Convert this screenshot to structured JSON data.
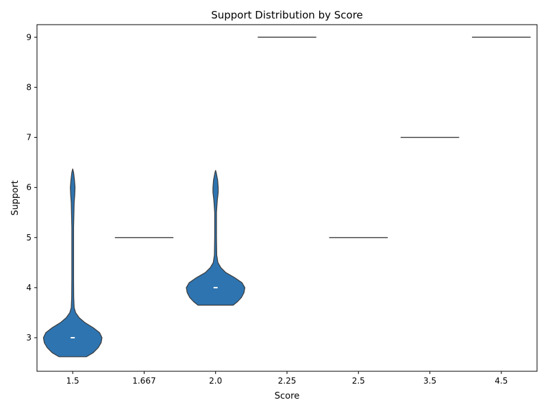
{
  "chart_data": {
    "type": "violin",
    "title": "Support Distribution by Score",
    "xlabel": "Score",
    "ylabel": "Support",
    "categories": [
      "1.5",
      "1.667",
      "2.0",
      "2.25",
      "2.5",
      "3.5",
      "4.5"
    ],
    "ylim": [
      2.33,
      9.25
    ],
    "yticks": [
      3,
      4,
      5,
      6,
      7,
      8,
      9
    ],
    "grid": false,
    "violins": [
      {
        "category": "1.5",
        "median": 3,
        "min": 2.62,
        "max": 6.37,
        "profile": [
          [
            2.62,
            0.47
          ],
          [
            2.7,
            0.7
          ],
          [
            2.8,
            0.87
          ],
          [
            2.9,
            0.97
          ],
          [
            3.0,
            1.0
          ],
          [
            3.1,
            0.92
          ],
          [
            3.2,
            0.7
          ],
          [
            3.3,
            0.42
          ],
          [
            3.4,
            0.22
          ],
          [
            3.5,
            0.1
          ],
          [
            3.6,
            0.05
          ],
          [
            3.8,
            0.035
          ],
          [
            4.2,
            0.03
          ],
          [
            5.2,
            0.03
          ],
          [
            5.7,
            0.05
          ],
          [
            5.85,
            0.07
          ],
          [
            6.0,
            0.08
          ],
          [
            6.15,
            0.06
          ],
          [
            6.3,
            0.03
          ],
          [
            6.37,
            0.0
          ]
        ]
      },
      {
        "category": "1.667",
        "value": 5
      },
      {
        "category": "2.0",
        "median": 4,
        "min": 3.65,
        "max": 6.34,
        "profile": [
          [
            3.65,
            0.6
          ],
          [
            3.72,
            0.75
          ],
          [
            3.8,
            0.88
          ],
          [
            3.9,
            0.97
          ],
          [
            4.0,
            1.0
          ],
          [
            4.1,
            0.9
          ],
          [
            4.2,
            0.65
          ],
          [
            4.3,
            0.35
          ],
          [
            4.4,
            0.18
          ],
          [
            4.5,
            0.08
          ],
          [
            4.65,
            0.04
          ],
          [
            5.0,
            0.03
          ],
          [
            5.5,
            0.03
          ],
          [
            5.75,
            0.06
          ],
          [
            5.9,
            0.09
          ],
          [
            6.0,
            0.09
          ],
          [
            6.15,
            0.07
          ],
          [
            6.3,
            0.02
          ],
          [
            6.34,
            0.0
          ]
        ]
      },
      {
        "category": "2.25",
        "value": 9
      },
      {
        "category": "2.5",
        "value": 5
      },
      {
        "category": "3.5",
        "value": 7
      },
      {
        "category": "4.5",
        "value": 9
      }
    ],
    "colors": {
      "fill": "#2e74b0",
      "edge": "#3a3a3a",
      "median": "#ffffff"
    }
  }
}
